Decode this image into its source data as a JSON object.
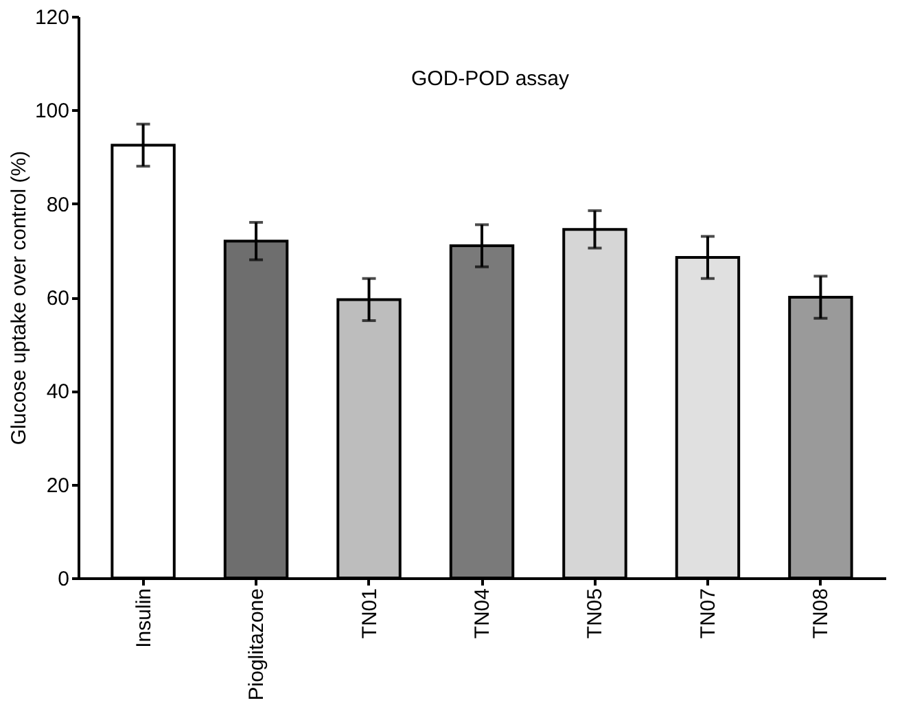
{
  "chart_data": {
    "type": "bar",
    "categories": [
      "Insulin",
      "Pioglitazone",
      "TN01",
      "TN04",
      "TN05",
      "TN07",
      "TN08"
    ],
    "values": [
      92.5,
      72,
      59.5,
      71,
      74.5,
      68.5,
      60
    ],
    "errors": [
      4.5,
      4,
      4.5,
      4.5,
      4,
      4.5,
      4.5
    ],
    "colors": [
      "#ffffff",
      "#6e6e6e",
      "#bdbdbd",
      "#7a7a7a",
      "#d6d6d6",
      "#e0e0e0",
      "#9a9a9a"
    ],
    "ylabel": "Glucose uptake over control (%)",
    "annotations": [
      "GOD-POD assay"
    ],
    "ylim": [
      0,
      120
    ],
    "yticks": [
      0,
      20,
      40,
      60,
      80,
      100,
      120
    ],
    "grid": false,
    "legend": false
  }
}
